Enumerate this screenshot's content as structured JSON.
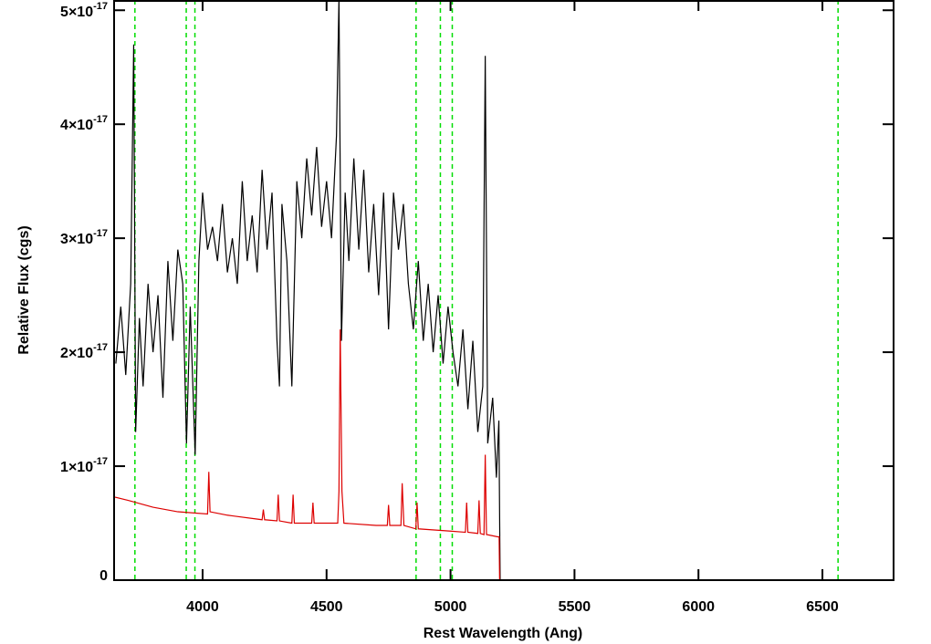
{
  "chart_data": {
    "type": "line",
    "xlabel": "Rest Wavelength (Ang)",
    "ylabel": "Relative Flux (cgs)",
    "xlim": [
      3643,
      6787
    ],
    "ylim": [
      0,
      5.09e-17
    ],
    "xticks": [
      4000,
      4500,
      5000,
      5500,
      6000,
      6500
    ],
    "yticks": [
      0,
      {
        "value": 1e-17,
        "label": "1×10",
        "sup": "-17"
      },
      {
        "value": 2e-17,
        "label": "2×10",
        "sup": "-17"
      },
      {
        "value": 3e-17,
        "label": "3×10",
        "sup": "-17"
      },
      {
        "value": 4e-17,
        "label": "4×10",
        "sup": "-17"
      },
      {
        "value": 5e-17,
        "label": "5×10",
        "sup": "-17"
      }
    ],
    "vlines": [
      3727,
      3934,
      3969,
      4861,
      4959,
      5007,
      6563
    ],
    "vline_color": "#00dd00",
    "series": [
      {
        "color": "#000000",
        "x": [
          3650,
          3670,
          3690,
          3710,
          3722,
          3730,
          3745,
          3760,
          3780,
          3800,
          3820,
          3840,
          3860,
          3880,
          3900,
          3920,
          3935,
          3950,
          3970,
          3985,
          4000,
          4020,
          4040,
          4060,
          4080,
          4100,
          4120,
          4140,
          4160,
          4180,
          4200,
          4220,
          4240,
          4260,
          4280,
          4300,
          4310,
          4320,
          4340,
          4360,
          4380,
          4400,
          4420,
          4440,
          4460,
          4480,
          4500,
          4520,
          4540,
          4550,
          4560,
          4575,
          4590,
          4610,
          4630,
          4650,
          4670,
          4690,
          4710,
          4730,
          4750,
          4770,
          4790,
          4810,
          4830,
          4850,
          4870,
          4890,
          4910,
          4930,
          4950,
          4970,
          4990,
          5010,
          5030,
          5050,
          5070,
          5090,
          5110,
          5130,
          5140,
          5150,
          5170,
          5185,
          5195,
          5200,
          6787
        ],
        "values": [
          1.9e-17,
          2.4e-17,
          1.8e-17,
          2.6e-17,
          4.7e-17,
          1.3e-17,
          2.3e-17,
          1.7e-17,
          2.6e-17,
          2e-17,
          2.5e-17,
          1.6e-17,
          2.8e-17,
          2.1e-17,
          2.9e-17,
          2.6e-17,
          1.2e-17,
          2.4e-17,
          1.1e-17,
          2.8e-17,
          3.4e-17,
          2.9e-17,
          3.1e-17,
          2.8e-17,
          3.3e-17,
          2.7e-17,
          3e-17,
          2.6e-17,
          3.5e-17,
          2.8e-17,
          3.2e-17,
          2.7e-17,
          3.6e-17,
          2.9e-17,
          3.4e-17,
          2.1e-17,
          1.7e-17,
          3.3e-17,
          2.8e-17,
          1.7e-17,
          3.5e-17,
          3e-17,
          3.7e-17,
          3.2e-17,
          3.8e-17,
          3.1e-17,
          3.5e-17,
          3e-17,
          3.9e-17,
          5.1e-17,
          2.1e-17,
          3.4e-17,
          2.8e-17,
          3.7e-17,
          2.9e-17,
          3.6e-17,
          2.7e-17,
          3.3e-17,
          2.5e-17,
          3.4e-17,
          2.2e-17,
          3.4e-17,
          2.9e-17,
          3.3e-17,
          2.6e-17,
          2.2e-17,
          2.8e-17,
          2.1e-17,
          2.6e-17,
          2e-17,
          2.5e-17,
          1.9e-17,
          2.4e-17,
          2e-17,
          1.7e-17,
          2.2e-17,
          1.5e-17,
          2.1e-17,
          1.3e-17,
          1.7e-17,
          4.6e-17,
          1.2e-17,
          1.6e-17,
          9e-18,
          1.4e-17,
          0,
          0
        ]
      },
      {
        "color": "#dd0000",
        "x": [
          3643,
          3700,
          3800,
          3900,
          4020,
          4025,
          4030,
          4100,
          4240,
          4245,
          4250,
          4300,
          4305,
          4310,
          4360,
          4365,
          4370,
          4440,
          4445,
          4450,
          4545,
          4550,
          4555,
          4562,
          4570,
          4700,
          4745,
          4750,
          4755,
          4800,
          4805,
          4812,
          4860,
          4865,
          4870,
          5000,
          5060,
          5065,
          5070,
          5110,
          5115,
          5120,
          5135,
          5140,
          5145,
          5190,
          5196,
          5198,
          6787
        ],
        "values": [
          7.3e-18,
          7e-18,
          6.4e-18,
          6e-18,
          5.8e-18,
          9.5e-18,
          6e-18,
          5.7e-18,
          5.3e-18,
          6.2e-18,
          5.3e-18,
          5.2e-18,
          7.5e-18,
          5.2e-18,
          5e-18,
          7.5e-18,
          5e-18,
          5e-18,
          6.8e-18,
          5e-18,
          5e-18,
          7.8e-18,
          2.2e-17,
          7.8e-18,
          5e-18,
          4.8e-18,
          4.8e-18,
          6.6e-18,
          4.8e-18,
          4.8e-18,
          8.5e-18,
          4.8e-18,
          4.5e-18,
          6.8e-18,
          4.5e-18,
          4.3e-18,
          4.2e-18,
          6.8e-18,
          4.2e-18,
          4.1e-18,
          7e-18,
          4.1e-18,
          4e-18,
          1.1e-17,
          4e-18,
          3.8e-18,
          3.8e-18,
          0,
          0
        ]
      }
    ]
  }
}
